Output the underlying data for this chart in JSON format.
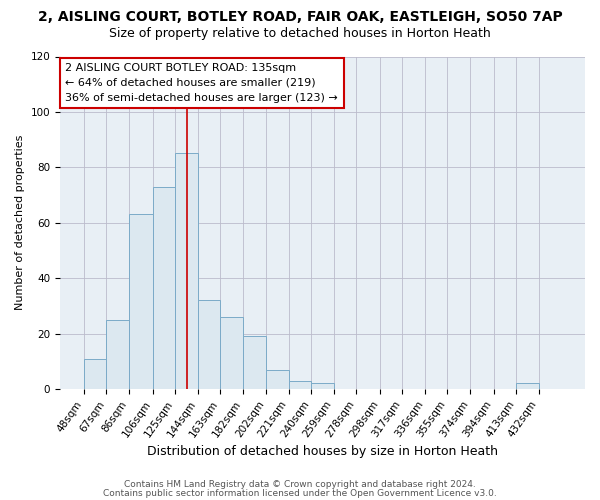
{
  "title": "2, AISLING COURT, BOTLEY ROAD, FAIR OAK, EASTLEIGH, SO50 7AP",
  "subtitle": "Size of property relative to detached houses in Horton Heath",
  "xlabel": "Distribution of detached houses by size in Horton Heath",
  "ylabel": "Number of detached properties",
  "bar_edges": [
    48,
    67,
    86,
    106,
    125,
    144,
    163,
    182,
    202,
    221,
    240,
    259,
    278,
    298,
    317,
    336,
    355,
    374,
    394,
    413,
    432
  ],
  "bar_heights": [
    11,
    25,
    63,
    73,
    85,
    32,
    26,
    19,
    7,
    3,
    2,
    0,
    0,
    0,
    0,
    0,
    0,
    0,
    0,
    2,
    0
  ],
  "bar_color": "#dce8f0",
  "bar_edge_color": "#7baac8",
  "vline_x": 135,
  "vline_color": "#cc0000",
  "ylim": [
    0,
    120
  ],
  "annotation_lines": [
    "2 AISLING COURT BOTLEY ROAD: 135sqm",
    "← 64% of detached houses are smaller (219)",
    "36% of semi-detached houses are larger (123) →"
  ],
  "ann_box_color": "#ffffff",
  "ann_border_color": "#cc0000",
  "footnote1": "Contains HM Land Registry data © Crown copyright and database right 2024.",
  "footnote2": "Contains public sector information licensed under the Open Government Licence v3.0.",
  "bg_color": "#ffffff",
  "plot_bg_color": "#e8eff5",
  "title_fontsize": 10,
  "subtitle_fontsize": 9,
  "xlabel_fontsize": 9,
  "ylabel_fontsize": 8,
  "tick_fontsize": 7.5,
  "ann_fontsize": 8,
  "footnote_fontsize": 6.5
}
